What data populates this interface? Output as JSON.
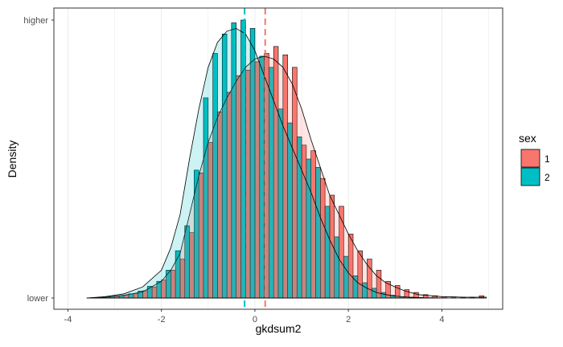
{
  "chart_data": {
    "type": "histogram",
    "xlabel": "gkdsum2",
    "ylabel": "Density",
    "xlim": [
      -4.3,
      5.3
    ],
    "x_ticks": [
      -4,
      -2,
      0,
      2,
      4
    ],
    "y_tick_labels": {
      "low": "lower",
      "high": "higher"
    },
    "ylim": [
      0,
      1
    ],
    "bin_width": 0.2,
    "grid": "vertical major and minor",
    "panel_border": true,
    "legend": {
      "title": "sex",
      "position": "right",
      "entries": [
        {
          "label": "1",
          "color": "#f8766d"
        },
        {
          "label": "2",
          "color": "#00bfc4"
        }
      ]
    },
    "series": [
      {
        "name": "1",
        "color": "#f8766d",
        "mean_line": 0.22,
        "bins_x": [
          -3.4,
          -3.2,
          -3.0,
          -2.8,
          -2.6,
          -2.4,
          -2.2,
          -2.0,
          -1.8,
          -1.6,
          -1.4,
          -1.2,
          -1.0,
          -0.8,
          -0.6,
          -0.4,
          -0.2,
          0.0,
          0.2,
          0.4,
          0.6,
          0.8,
          1.0,
          1.2,
          1.4,
          1.6,
          1.8,
          2.0,
          2.2,
          2.4,
          2.6,
          2.8,
          3.0,
          3.2,
          3.4,
          3.6,
          3.8,
          4.0,
          4.2,
          4.4,
          4.6,
          4.8
        ],
        "bins_density": [
          0,
          0.003,
          0.006,
          0.01,
          0.016,
          0.026,
          0.04,
          0.065,
          0.1,
          0.14,
          0.235,
          0.45,
          0.56,
          0.67,
          0.74,
          0.8,
          0.82,
          0.85,
          0.88,
          0.905,
          0.875,
          0.83,
          0.55,
          0.53,
          0.43,
          0.37,
          0.33,
          0.23,
          0.17,
          0.14,
          0.1,
          0.06,
          0.045,
          0.03,
          0.02,
          0.012,
          0.008,
          0.005,
          0.004,
          0.003,
          0.003,
          0.008
        ],
        "density_curve": [
          [
            -3.6,
            0
          ],
          [
            -3.2,
            0.003
          ],
          [
            -2.8,
            0.01
          ],
          [
            -2.4,
            0.022
          ],
          [
            -2.0,
            0.06
          ],
          [
            -1.8,
            0.1
          ],
          [
            -1.6,
            0.16
          ],
          [
            -1.4,
            0.3
          ],
          [
            -1.2,
            0.44
          ],
          [
            -1.0,
            0.56
          ],
          [
            -0.8,
            0.65
          ],
          [
            -0.6,
            0.72
          ],
          [
            -0.4,
            0.78
          ],
          [
            -0.2,
            0.83
          ],
          [
            0.0,
            0.86
          ],
          [
            0.2,
            0.87
          ],
          [
            0.4,
            0.86
          ],
          [
            0.6,
            0.83
          ],
          [
            0.8,
            0.77
          ],
          [
            1.0,
            0.68
          ],
          [
            1.2,
            0.57
          ],
          [
            1.4,
            0.47
          ],
          [
            1.6,
            0.37
          ],
          [
            1.8,
            0.3
          ],
          [
            2.0,
            0.23
          ],
          [
            2.2,
            0.17
          ],
          [
            2.4,
            0.12
          ],
          [
            2.6,
            0.08
          ],
          [
            2.8,
            0.055
          ],
          [
            3.0,
            0.04
          ],
          [
            3.2,
            0.026
          ],
          [
            3.5,
            0.012
          ],
          [
            4.0,
            0.005
          ],
          [
            4.5,
            0.003
          ],
          [
            4.95,
            0.003
          ]
        ]
      },
      {
        "name": "2",
        "color": "#00bfc4",
        "mean_line": -0.22,
        "bins_x": [
          -3.4,
          -3.2,
          -3.0,
          -2.8,
          -2.6,
          -2.4,
          -2.2,
          -2.0,
          -1.8,
          -1.6,
          -1.4,
          -1.2,
          -1.0,
          -0.8,
          -0.6,
          -0.4,
          -0.2,
          0.0,
          0.2,
          0.4,
          0.6,
          0.8,
          1.0,
          1.2,
          1.4,
          1.6,
          1.8,
          2.0,
          2.2,
          2.4,
          2.6,
          2.8,
          3.0,
          3.2,
          3.4,
          3.6,
          3.8,
          4.0,
          4.2,
          4.4,
          4.6,
          4.8
        ],
        "bins_density": [
          0.003,
          0.005,
          0.008,
          0.015,
          0.025,
          0.042,
          0.06,
          0.1,
          0.17,
          0.26,
          0.46,
          0.72,
          0.88,
          0.95,
          0.99,
          1.0,
          0.97,
          0.87,
          0.83,
          0.68,
          0.63,
          0.58,
          0.5,
          0.47,
          0.33,
          0.22,
          0.15,
          0.08,
          0.055,
          0.035,
          0.02,
          0.01,
          0.005,
          0.003,
          0.002,
          0.001,
          0,
          0,
          0,
          0,
          0,
          0
        ],
        "density_curve": [
          [
            -3.6,
            0
          ],
          [
            -3.2,
            0.005
          ],
          [
            -2.8,
            0.015
          ],
          [
            -2.4,
            0.04
          ],
          [
            -2.0,
            0.1
          ],
          [
            -1.8,
            0.18
          ],
          [
            -1.6,
            0.3
          ],
          [
            -1.4,
            0.5
          ],
          [
            -1.2,
            0.68
          ],
          [
            -1.0,
            0.83
          ],
          [
            -0.8,
            0.92
          ],
          [
            -0.6,
            0.96
          ],
          [
            -0.4,
            0.97
          ],
          [
            -0.2,
            0.95
          ],
          [
            0.0,
            0.89
          ],
          [
            0.2,
            0.8
          ],
          [
            0.4,
            0.71
          ],
          [
            0.6,
            0.62
          ],
          [
            0.8,
            0.54
          ],
          [
            1.0,
            0.46
          ],
          [
            1.2,
            0.38
          ],
          [
            1.4,
            0.29
          ],
          [
            1.6,
            0.21
          ],
          [
            1.8,
            0.14
          ],
          [
            2.0,
            0.09
          ],
          [
            2.2,
            0.055
          ],
          [
            2.4,
            0.035
          ],
          [
            2.6,
            0.02
          ],
          [
            2.8,
            0.012
          ],
          [
            3.0,
            0.007
          ],
          [
            3.3,
            0.003
          ],
          [
            3.6,
            0.001
          ],
          [
            4.0,
            0
          ]
        ]
      }
    ]
  }
}
